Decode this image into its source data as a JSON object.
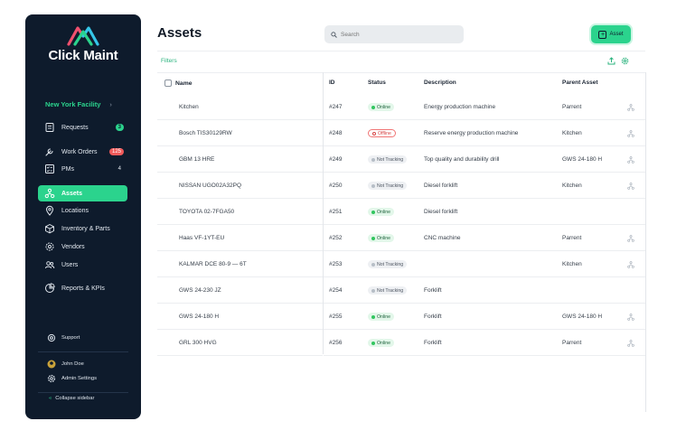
{
  "brand": {
    "name": "Click Maint"
  },
  "sidebar": {
    "facility": "New York Facility",
    "items": [
      {
        "label": "Requests",
        "badge": "3",
        "badge_style": "green",
        "icon": "requests-icon"
      },
      {
        "label": "Work Orders",
        "badge": "125",
        "badge_style": "red",
        "icon": "wrench-icon"
      },
      {
        "label": "PMs",
        "badge": "4",
        "badge_style": "plain",
        "icon": "checklist-icon"
      },
      {
        "label": "Assets",
        "badge": "",
        "badge_style": "",
        "icon": "assets-icon",
        "active": true
      },
      {
        "label": "Locations",
        "badge": "",
        "badge_style": "",
        "icon": "location-pin-icon"
      },
      {
        "label": "Inventory & Parts",
        "badge": "",
        "badge_style": "",
        "icon": "box-icon"
      },
      {
        "label": "Vendors",
        "badge": "",
        "badge_style": "",
        "icon": "vendors-icon"
      },
      {
        "label": "Users",
        "badge": "",
        "badge_style": "",
        "icon": "users-icon"
      },
      {
        "label": "Reports & KPIs",
        "badge": "",
        "badge_style": "",
        "icon": "pie-chart-icon"
      }
    ],
    "support": "Support",
    "user_name": "John Doe",
    "admin_settings": "Admin Settings",
    "collapse": "Collapse sidebar"
  },
  "header": {
    "title": "Assets",
    "search_placeholder": "Search",
    "add_label": "Asset",
    "filters_label": "Filters"
  },
  "colors": {
    "accent": "#2bd38d",
    "sidebar_bg": "#0e1b2c",
    "online": "#32c65f",
    "offline": "#d64545"
  },
  "table": {
    "name_header": "Name",
    "columns": [
      "ID",
      "Status",
      "Description",
      "Parent Asset"
    ],
    "rows": [
      {
        "name": "Kitchen",
        "id": "#247",
        "status": "Online",
        "description": "Energy production machine",
        "parent": "Parrent",
        "has_tree": true
      },
      {
        "name": "Bosch TIS30129RW",
        "id": "#248",
        "status": "Offline",
        "description": "Reserve energy production machine",
        "parent": "Kitchen",
        "has_tree": true
      },
      {
        "name": "GBM 13 HRE",
        "id": "#249",
        "status": "Not Tracking",
        "description": "Top quality and durability drill",
        "parent": "GWS 24-180 H",
        "has_tree": true
      },
      {
        "name": "NISSAN UGO02A32PQ",
        "id": "#250",
        "status": "Not Tracking",
        "description": "Diesel forklift",
        "parent": "Kitchen",
        "has_tree": true
      },
      {
        "name": "TOYOTA 02-7FGA50",
        "id": "#251",
        "status": "Online",
        "description": "Diesel forklift",
        "parent": "",
        "has_tree": false
      },
      {
        "name": "Haas VF-1YT-EU",
        "id": "#252",
        "status": "Online",
        "description": "CNC machine",
        "parent": "Parrent",
        "has_tree": true
      },
      {
        "name": "KALMAR DCE 80-9 — 6T",
        "id": "#253",
        "status": "Not Tracking",
        "description": "",
        "parent": "Kitchen",
        "has_tree": true
      },
      {
        "name": "GWS 24-230 JZ",
        "id": "#254",
        "status": "Not Tracking",
        "description": "Forklift",
        "parent": "",
        "has_tree": false
      },
      {
        "name": "GWS 24-180 H",
        "id": "#255",
        "status": "Online",
        "description": "Forklift",
        "parent": "GWS 24-180 H",
        "has_tree": true
      },
      {
        "name": "GRL 300 HVG",
        "id": "#256",
        "status": "Online",
        "description": "Forklift",
        "parent": "Parrent",
        "has_tree": true
      }
    ]
  }
}
